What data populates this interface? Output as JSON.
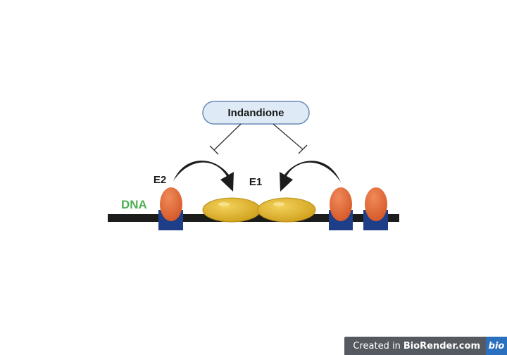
{
  "title": "Indandione",
  "labels": {
    "dna": "DNA",
    "e1": "E1",
    "e2": "E2"
  },
  "colors": {
    "dna_label": "#4caf50",
    "dna_strand": "#1c1c1c",
    "orange_protein": "#e06a3a",
    "blue_block": "#1e3f87",
    "yellow_enzyme": "#e3b830",
    "pill_fill": "#deebf7",
    "pill_border": "#6b8ab5"
  },
  "footer": {
    "prefix": "Created in",
    "brand": "BioRender.com",
    "logo": "bio"
  }
}
